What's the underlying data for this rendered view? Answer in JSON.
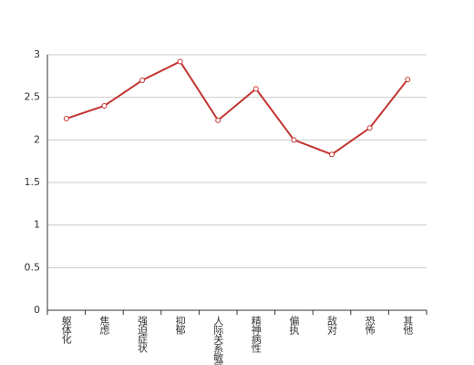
{
  "chart_data": {
    "type": "line",
    "categories": [
      "躯体化",
      "焦虑",
      "强迫症状",
      "抑郁",
      "人际关系敏感",
      "精神病性",
      "偏执",
      "敌对",
      "恐怖",
      "其他"
    ],
    "series": [
      {
        "color": "#c23531",
        "values": [
          2.25,
          2.4,
          2.7,
          2.92,
          2.23,
          2.6,
          2.0,
          1.83,
          2.14,
          2.71
        ]
      }
    ],
    "ylim": [
      0,
      3
    ],
    "yticks": [
      0,
      0.5,
      1,
      1.5,
      2,
      2.5,
      3
    ],
    "grid": true
  }
}
